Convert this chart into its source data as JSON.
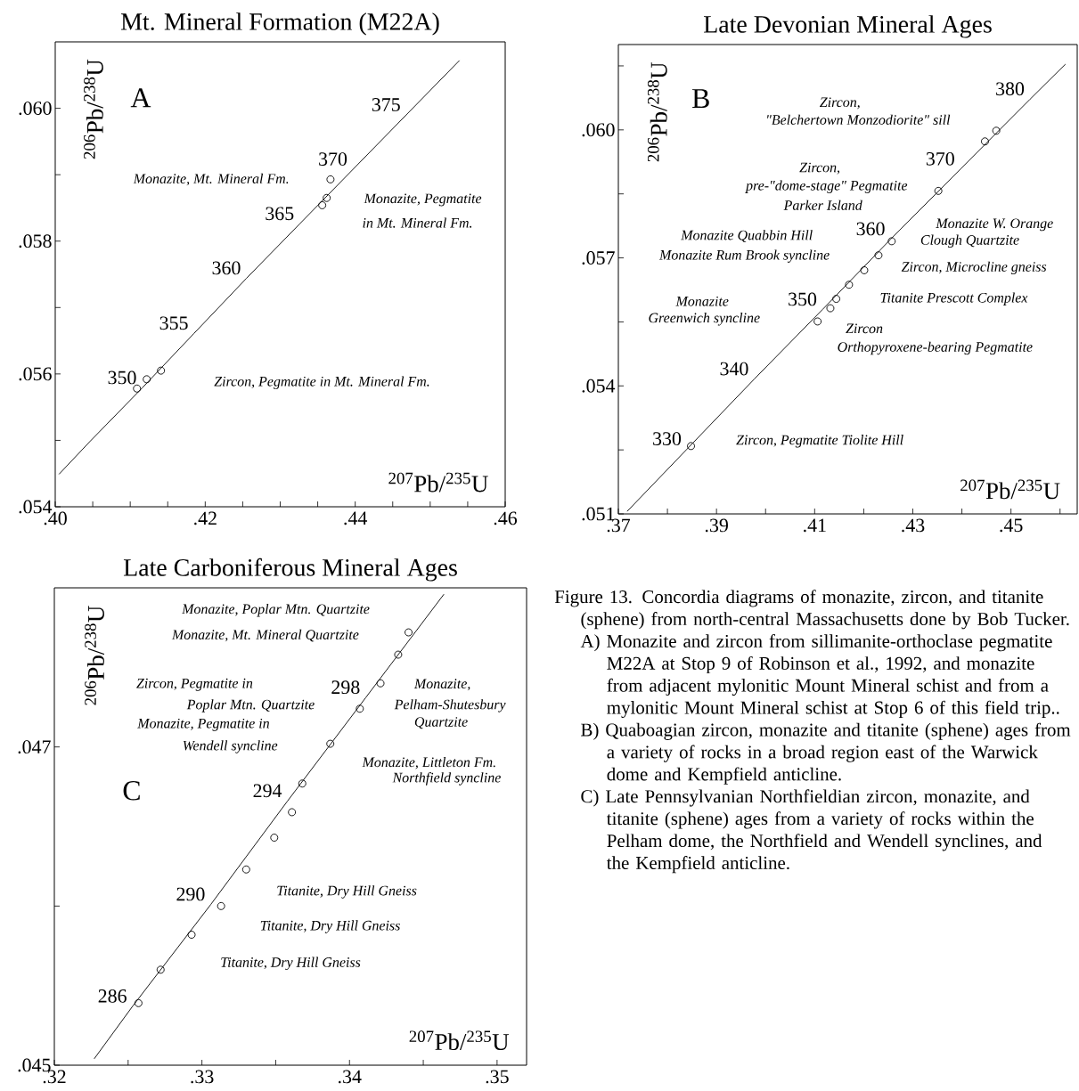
{
  "chart_data": [
    {
      "type": "line",
      "title": "Mt. Mineral Formation (M22A)",
      "xlabel": "$^{207}$Pb/$^{235}$U",
      "ylabel": "$^{206}$Pb/$^{238}$U",
      "xlim": [
        0.4,
        0.46
      ],
      "ylim": [
        0.054,
        0.061
      ],
      "xticks": [
        {
          "value": 0.4,
          "label": ".40"
        },
        {
          "value": 0.405,
          "label": null
        },
        {
          "value": 0.41,
          "label": null
        },
        {
          "value": 0.415,
          "label": null
        },
        {
          "value": 0.42,
          "label": ".42"
        },
        {
          "value": 0.425,
          "label": null
        },
        {
          "value": 0.43,
          "label": null
        },
        {
          "value": 0.435,
          "label": null
        },
        {
          "value": 0.44,
          "label": ".44"
        },
        {
          "value": 0.445,
          "label": null
        },
        {
          "value": 0.45,
          "label": null
        },
        {
          "value": 0.455,
          "label": null
        },
        {
          "value": 0.46,
          "label": ".46"
        }
      ],
      "yticks": [
        {
          "value": 0.054,
          "label": ".054"
        },
        {
          "value": 0.055,
          "label": null
        },
        {
          "value": 0.056,
          "label": ".056"
        },
        {
          "value": 0.057,
          "label": null
        },
        {
          "value": 0.058,
          "label": ".058"
        },
        {
          "value": 0.059,
          "label": null
        },
        {
          "value": 0.06,
          "label": ".060"
        }
      ],
      "series": [
        {
          "type": "line",
          "color": "#000000",
          "marker": "none",
          "line_style": "solid",
          "x": [
            0.4005,
            0.4046,
            0.4116,
            0.4185,
            0.4255,
            0.4326,
            0.4397,
            0.4468,
            0.4539
          ],
          "values": [
            0.05449,
            0.05498,
            0.05579,
            0.05661,
            0.05744,
            0.05826,
            0.05908,
            0.0599,
            0.06072
          ]
        },
        {
          "type": "scatter",
          "color": "#000000",
          "marker": "circle",
          "x": [
            0.4367,
            0.4362,
            0.4356,
            0.4141,
            0.4122,
            0.4109
          ],
          "values": [
            0.05893,
            0.05865,
            0.05854,
            0.05605,
            0.05592,
            0.05578
          ]
        }
      ],
      "annotations": [
        "A",
        "Monazite, Mt. Mineral Fm.",
        "Monazite, Pegmatite",
        "in Mt. Mineral Fm.",
        "Zircon, Pegmatite in Mt. Mineral Fm.",
        {
          "text": "350",
          "x": 0.4116,
          "y": 0.05579
        },
        {
          "text": "355",
          "x": 0.4185,
          "y": 0.05661
        },
        {
          "text": "360",
          "x": 0.4255,
          "y": 0.05744
        },
        {
          "text": "365",
          "x": 0.4326,
          "y": 0.05826
        },
        {
          "text": "370",
          "x": 0.4397,
          "y": 0.05908
        },
        {
          "text": "375",
          "x": 0.4468,
          "y": 0.0599
        }
      ]
    },
    {
      "type": "line",
      "title": "Late Devonian Mineral Ages",
      "xlabel": "$^{207}$Pb/$^{235}$U",
      "ylabel": "$^{206}$Pb/$^{238}$U",
      "xlim": [
        0.37,
        0.4635
      ],
      "ylim": [
        0.051,
        0.062
      ],
      "xticks": [
        {
          "value": 0.37,
          "label": ".37"
        },
        {
          "value": 0.38,
          "label": null
        },
        {
          "value": 0.39,
          "label": ".39"
        },
        {
          "value": 0.4,
          "label": null
        },
        {
          "value": 0.41,
          "label": ".41"
        },
        {
          "value": 0.42,
          "label": null
        },
        {
          "value": 0.43,
          "label": ".43"
        },
        {
          "value": 0.44,
          "label": null
        },
        {
          "value": 0.45,
          "label": ".45"
        },
        {
          "value": 0.46,
          "label": null
        }
      ],
      "yticks": [
        {
          "value": 0.051,
          "label": ".051"
        },
        {
          "value": 0.0525,
          "label": null
        },
        {
          "value": 0.054,
          "label": ".054"
        },
        {
          "value": 0.0555,
          "label": null
        },
        {
          "value": 0.057,
          "label": ".057"
        },
        {
          "value": 0.0585,
          "label": null
        },
        {
          "value": 0.06,
          "label": ".060"
        },
        {
          "value": 0.0615,
          "label": null
        }
      ],
      "series": [
        {
          "type": "line",
          "color": "#000000",
          "marker": "none",
          "line_style": "solid",
          "x": [
            0.3718,
            0.384,
            0.3977,
            0.4116,
            0.4255,
            0.4397,
            0.4539,
            0.4611
          ],
          "values": [
            0.05106,
            0.05252,
            0.05416,
            0.05579,
            0.05744,
            0.05908,
            0.06072,
            0.06154
          ]
        },
        {
          "type": "scatter",
          "color": "#000000",
          "marker": "circle",
          "x": [
            0.447,
            0.4447,
            0.4352,
            0.4257,
            0.423,
            0.4201,
            0.417,
            0.4144,
            0.4132,
            0.4106,
            0.3848
          ],
          "values": [
            0.05998,
            0.05973,
            0.05857,
            0.05739,
            0.05706,
            0.05671,
            0.05637,
            0.05604,
            0.05582,
            0.05551,
            0.05259
          ]
        }
      ],
      "annotations": [
        "B",
        "Zircon,",
        "\"Belchertown Monzodiorite\" sill",
        "Zircon,",
        "pre-\"dome-stage\" Pegmatite",
        "Parker Island",
        "Monazite  Quabbin Hill",
        "Monazite  Rum Brook syncline",
        "Monazite W. Orange",
        "Clough Quartzite",
        "Zircon, Microcline gneiss",
        "Monazite",
        "Greenwich syncline",
        "Titanite  Prescott Complex",
        "Zircon",
        "Orthopyroxene-bearing Pegmatite",
        "Zircon, Pegmatite  Tiolite Hill",
        {
          "text": "330",
          "x": 0.384,
          "y": 0.05252
        },
        {
          "text": "340",
          "x": 0.3977,
          "y": 0.05416
        },
        {
          "text": "350",
          "x": 0.4116,
          "y": 0.05579
        },
        {
          "text": "360",
          "x": 0.4255,
          "y": 0.05744
        },
        {
          "text": "370",
          "x": 0.4397,
          "y": 0.05908
        },
        {
          "text": "380",
          "x": 0.4539,
          "y": 0.06072
        }
      ]
    },
    {
      "type": "line",
      "title": "Late Carboniferous Mineral Ages",
      "xlabel": "$^{207}$Pb/$^{235}$U",
      "ylabel": "$^{206}$Pb/$^{238}$U",
      "xlim": [
        0.32,
        0.352
      ],
      "ylim": [
        0.045,
        0.048
      ],
      "xticks": [
        {
          "value": 0.32,
          "label": ".32"
        },
        {
          "value": 0.325,
          "label": null
        },
        {
          "value": 0.33,
          "label": ".33"
        },
        {
          "value": 0.335,
          "label": null
        },
        {
          "value": 0.34,
          "label": ".34"
        },
        {
          "value": 0.345,
          "label": null
        },
        {
          "value": 0.35,
          "label": ".35"
        }
      ],
      "yticks": [
        {
          "value": 0.045,
          "label": ".045"
        },
        {
          "value": 0.046,
          "label": null
        },
        {
          "value": 0.047,
          "label": ".047"
        }
      ],
      "series": [
        {
          "type": "line",
          "color": "#000000",
          "marker": "none",
          "line_style": "solid",
          "x": [
            0.3227,
            0.3253,
            0.3306,
            0.3358,
            0.3411,
            0.3464
          ],
          "values": [
            0.04504,
            0.04537,
            0.04601,
            0.04666,
            0.04731,
            0.04796
          ]
        },
        {
          "type": "scatter",
          "color": "#000000",
          "marker": "circle",
          "x": [
            0.344,
            0.3433,
            0.3421,
            0.3407,
            0.3387,
            0.3368,
            0.3361,
            0.3349,
            0.333,
            0.3313,
            0.3293,
            0.3272,
            0.3257
          ],
          "values": [
            0.04772,
            0.04758,
            0.0474,
            0.04724,
            0.04702,
            0.04677,
            0.04659,
            0.04643,
            0.04623,
            0.046,
            0.04582,
            0.0456,
            0.04539
          ]
        }
      ],
      "annotations": [
        "C",
        "Monazite, Poplar Mtn. Quartzite",
        "Monazite, Mt. Mineral Quartzite",
        "Zircon, Pegmatite in",
        "Poplar Mtn. Quartzite",
        "Monazite, Pegmatite in",
        "Wendell syncline",
        "Monazite,",
        "Pelham-Shutesbury",
        "Quartzite",
        "Monazite, Littleton Fm.",
        "Northfield syncline",
        "Titanite, Dry Hill Gneiss",
        "Titanite, Dry Hill Gneiss",
        "Titanite, Dry Hill Gneiss",
        {
          "text": "286",
          "x": 0.3253,
          "y": 0.04537
        },
        {
          "text": "290",
          "x": 0.3306,
          "y": 0.04601
        },
        {
          "text": "294",
          "x": 0.3358,
          "y": 0.04666
        },
        {
          "text": "298",
          "x": 0.3411,
          "y": 0.04731
        }
      ]
    },
    {
      "type": "other",
      "annotations": [
        "Figure 13. Concordia diagrams of monazite, zircon, and titanite (sphene) from north-central Massachusetts done by Bob Tucker.",
        "A) Monazite and zircon from sillimanite-orthoclase pegmatite M22A at Stop 9 of Robinson et al., 1992, and monazite from adjacent mylonitic Mount Mineral schist and from a mylonitic Mount Mineral schist at Stop 6 of this field trip..",
        "B) Quaboagian zircon, monazite and titanite (sphene) ages from a variety of rocks in a broad region east of the Warwick dome and Kempfield anticline.",
        "C) Late Pennsylvanian Northfieldian zircon, monazite, and titanite (sphene) ages from a variety of rocks within the Pelham dome, the Northfield and Wendell synclines, and the Kempfield anticline."
      ]
    }
  ]
}
